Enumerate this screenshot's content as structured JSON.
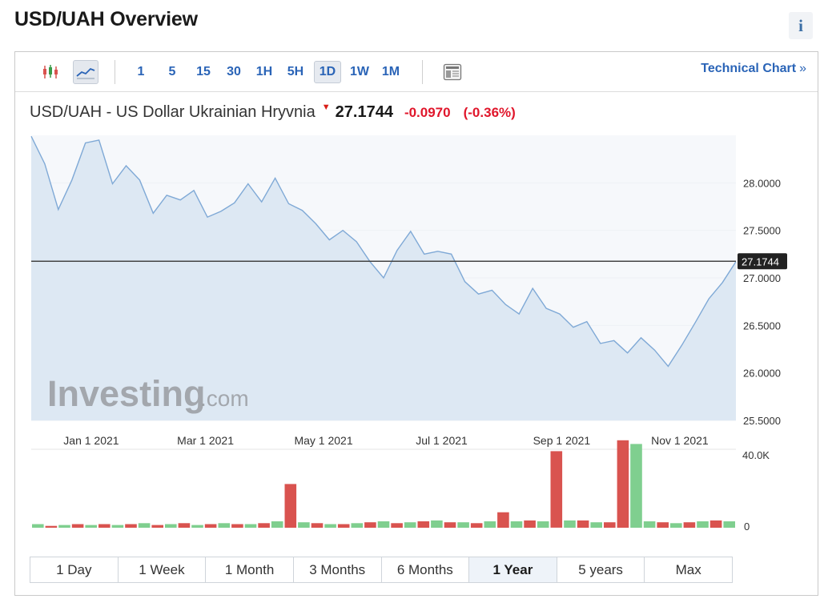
{
  "page": {
    "title": "USD/UAH Overview",
    "info_label": "i"
  },
  "toolbar": {
    "icons": [
      "candlestick-icon",
      "line-chart-icon",
      "layout-icon"
    ],
    "intervals": [
      "1",
      "5",
      "15",
      "30",
      "1H",
      "5H",
      "1D",
      "1W",
      "1M"
    ],
    "active_interval": "1D",
    "technical_chart_label": "Technical Chart",
    "technical_chart_chevron": "»"
  },
  "quote": {
    "name": "USD/UAH - US Dollar Ukrainian Hryvnia",
    "direction_arrow": "▼",
    "price": "27.1744",
    "change": "-0.0970",
    "change_pct": "(-0.36%)"
  },
  "chart_data": {
    "type": "area",
    "x_tick_labels": [
      "Jan 1 2021",
      "Mar 1 2021",
      "May 1 2021",
      "Jul 1 2021",
      "Sep 1 2021",
      "Nov 1 2021"
    ],
    "y_tick_labels": [
      "28.0000",
      "27.5000",
      "27.0000",
      "26.5000",
      "26.0000",
      "25.5000"
    ],
    "ylim": [
      25.5,
      28.5
    ],
    "current_value_label": "27.1744",
    "current_value": 27.1744,
    "watermark": {
      "brand": "Investing",
      "suffix": ".com"
    },
    "colors": {
      "line": "#7fa9d6",
      "fill": "#dde8f3",
      "current_line": "#444444",
      "up": "#7fcf8f",
      "down": "#d9534f"
    },
    "x": [
      "2020-12-01",
      "2020-12-08",
      "2020-12-15",
      "2020-12-22",
      "2020-12-29",
      "2021-01-05",
      "2021-01-12",
      "2021-01-19",
      "2021-01-26",
      "2021-02-02",
      "2021-02-09",
      "2021-02-16",
      "2021-02-23",
      "2021-03-02",
      "2021-03-09",
      "2021-03-16",
      "2021-03-23",
      "2021-03-30",
      "2021-04-06",
      "2021-04-13",
      "2021-04-20",
      "2021-04-27",
      "2021-05-04",
      "2021-05-11",
      "2021-05-18",
      "2021-05-25",
      "2021-06-01",
      "2021-06-08",
      "2021-06-15",
      "2021-06-22",
      "2021-06-29",
      "2021-07-06",
      "2021-07-13",
      "2021-07-20",
      "2021-07-27",
      "2021-08-03",
      "2021-08-10",
      "2021-08-17",
      "2021-08-24",
      "2021-08-31",
      "2021-09-07",
      "2021-09-14",
      "2021-09-21",
      "2021-09-28",
      "2021-10-05",
      "2021-10-12",
      "2021-10-19",
      "2021-10-26",
      "2021-11-02",
      "2021-11-09",
      "2021-11-16",
      "2021-11-23",
      "2021-11-30"
    ],
    "series": [
      {
        "values": [
          28.49,
          28.2,
          27.72,
          28.03,
          28.42,
          28.45,
          27.99,
          28.18,
          28.03,
          27.68,
          27.87,
          27.82,
          27.92,
          27.64,
          27.7,
          27.79,
          27.99,
          27.8,
          28.05,
          27.78,
          27.71,
          27.57,
          27.4,
          27.5,
          27.38,
          27.17,
          27.0,
          27.29,
          27.49,
          27.25,
          27.28,
          27.25,
          26.96,
          26.83,
          26.87,
          26.72,
          26.62,
          26.89,
          26.68,
          26.62,
          26.48,
          26.54,
          26.31,
          26.34,
          26.21,
          26.37,
          26.24,
          26.07,
          26.29,
          26.53,
          26.78,
          26.95,
          27.17
        ]
      }
    ],
    "volume": {
      "label_top": "40.0K",
      "label_bottom": "0",
      "values": [
        2.0,
        1.0,
        1.5,
        2.0,
        1.5,
        2.0,
        1.5,
        2.0,
        2.5,
        1.5,
        2.0,
        2.5,
        1.5,
        2.0,
        2.5,
        2.0,
        2.0,
        2.5,
        3.5,
        24.0,
        3.0,
        2.5,
        2.0,
        2.0,
        2.5,
        3.0,
        3.5,
        2.5,
        3.0,
        3.5,
        4.0,
        3.0,
        3.0,
        2.5,
        3.5,
        8.5,
        3.5,
        4.0,
        3.5,
        42.0,
        4.0,
        4.0,
        3.0,
        3.0,
        48.0,
        46.0,
        3.5,
        3.0,
        2.5,
        3.0,
        3.5,
        4.0,
        3.5
      ],
      "up": [
        true,
        false,
        true,
        false,
        true,
        false,
        true,
        false,
        true,
        false,
        true,
        false,
        true,
        false,
        true,
        false,
        true,
        false,
        true,
        false,
        true,
        false,
        true,
        false,
        true,
        false,
        true,
        false,
        true,
        false,
        true,
        false,
        true,
        false,
        true,
        false,
        true,
        false,
        true,
        false,
        true,
        false,
        true,
        false,
        false,
        true,
        true,
        false,
        true,
        false,
        true,
        false,
        true
      ]
    }
  },
  "ranges": {
    "items": [
      "1 Day",
      "1 Week",
      "1 Month",
      "3 Months",
      "6 Months",
      "1 Year",
      "5 years",
      "Max"
    ],
    "active": "1 Year"
  }
}
